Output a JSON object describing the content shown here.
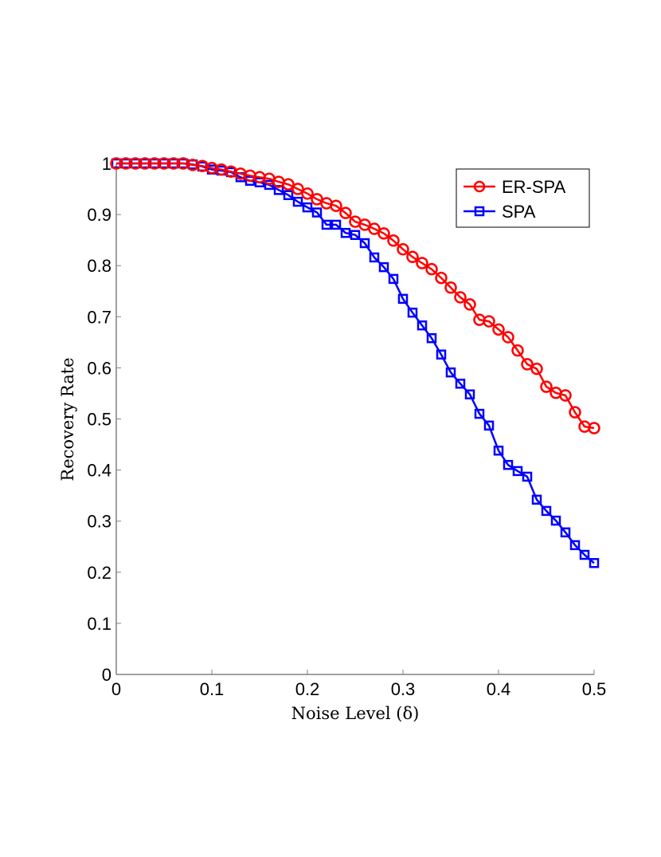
{
  "chart_data": {
    "type": "line",
    "title": "",
    "xlabel": "Noise Level (δ)",
    "ylabel": "Recovery Rate",
    "xlim": [
      0,
      0.5
    ],
    "ylim": [
      0,
      1
    ],
    "grid": false,
    "legend_position": "upper right",
    "x_ticks": [
      "0",
      "0.1",
      "0.2",
      "0.3",
      "0.4",
      "0.5"
    ],
    "y_ticks": [
      "0",
      "0.1",
      "0.2",
      "0.3",
      "0.4",
      "0.5",
      "0.6",
      "0.7",
      "0.8",
      "0.9",
      "1"
    ],
    "x": [
      0.0,
      0.01,
      0.02,
      0.03,
      0.04,
      0.05,
      0.06,
      0.07,
      0.08,
      0.09,
      0.1,
      0.11,
      0.12,
      0.13,
      0.14,
      0.15,
      0.16,
      0.17,
      0.18,
      0.19,
      0.2,
      0.21,
      0.22,
      0.23,
      0.24,
      0.25,
      0.26,
      0.27,
      0.28,
      0.29,
      0.3,
      0.31,
      0.32,
      0.33,
      0.34,
      0.35,
      0.36,
      0.37,
      0.38,
      0.39,
      0.4,
      0.41,
      0.42,
      0.43,
      0.44,
      0.45,
      0.46,
      0.47,
      0.48,
      0.49,
      0.5
    ],
    "series": [
      {
        "name": "ER-SPA",
        "color": "#ff0000",
        "marker": "circle",
        "values": [
          1.0,
          1.0,
          1.0,
          1.0,
          1.0,
          1.0,
          1.0,
          1.0,
          0.997,
          0.995,
          0.991,
          0.988,
          0.984,
          0.98,
          0.976,
          0.973,
          0.97,
          0.964,
          0.959,
          0.95,
          0.941,
          0.93,
          0.922,
          0.917,
          0.903,
          0.886,
          0.88,
          0.872,
          0.863,
          0.849,
          0.832,
          0.817,
          0.805,
          0.793,
          0.776,
          0.757,
          0.738,
          0.724,
          0.694,
          0.691,
          0.675,
          0.66,
          0.634,
          0.607,
          0.598,
          0.563,
          0.551,
          0.546,
          0.513,
          0.485,
          0.482
        ]
      },
      {
        "name": "SPA",
        "color": "#0000ff",
        "marker": "square",
        "values": [
          1.0,
          1.0,
          1.0,
          1.0,
          1.0,
          1.0,
          1.0,
          1.0,
          0.998,
          0.994,
          0.988,
          0.986,
          0.983,
          0.973,
          0.966,
          0.963,
          0.958,
          0.948,
          0.938,
          0.925,
          0.914,
          0.904,
          0.88,
          0.88,
          0.864,
          0.86,
          0.844,
          0.816,
          0.797,
          0.774,
          0.735,
          0.708,
          0.683,
          0.658,
          0.626,
          0.591,
          0.569,
          0.548,
          0.51,
          0.487,
          0.438,
          0.41,
          0.398,
          0.387,
          0.342,
          0.32,
          0.301,
          0.278,
          0.253,
          0.234,
          0.218
        ]
      }
    ]
  },
  "legend": {
    "items": [
      {
        "label": "ER-SPA",
        "color": "#ff0000",
        "marker": "circle"
      },
      {
        "label": "SPA",
        "color": "#0000ff",
        "marker": "square"
      }
    ]
  },
  "axes": {
    "xlabel": "Noise Level (δ)",
    "ylabel": "Recovery Rate"
  }
}
